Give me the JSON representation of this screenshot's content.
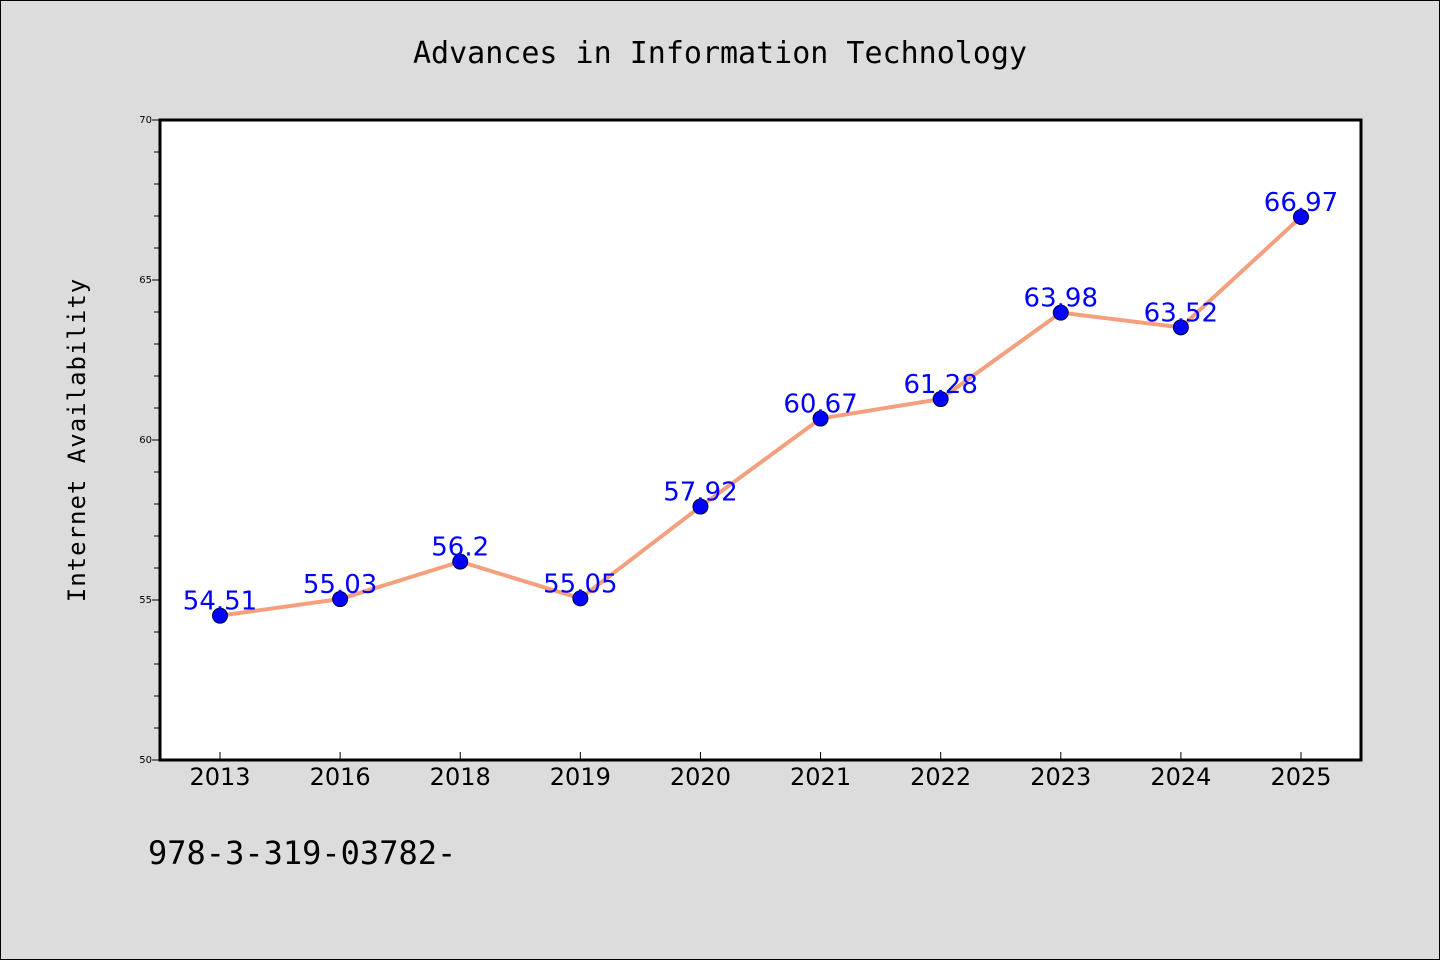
{
  "chart_data": {
    "type": "line",
    "title": "Advances in Information Technology",
    "xlabel": "",
    "ylabel": "Internet Availability",
    "categories": [
      "2013",
      "2016",
      "2018",
      "2019",
      "2020",
      "2021",
      "2022",
      "2023",
      "2024",
      "2025"
    ],
    "series": [
      {
        "values": [
          54.51,
          55.03,
          56.2,
          55.05,
          57.92,
          60.67,
          61.28,
          63.98,
          63.52,
          66.97
        ],
        "data_labels": [
          "54.51",
          "55.03",
          "56.2",
          "55.05",
          "57.92",
          "60.67",
          "61.28",
          "63.98",
          "63.52",
          "66.97"
        ]
      }
    ],
    "ylim": [
      50,
      70
    ],
    "yticks": [
      "50",
      "55",
      "60",
      "65",
      "70"
    ],
    "grid": false,
    "legend": "none",
    "colors": {
      "line": "#f4a07e",
      "marker": "#0000ff",
      "data_label": "#0000ff",
      "plot_background": "#ffffff",
      "page_background": "#dcdcdc"
    }
  },
  "footer_text": "978-3-319-03782-"
}
